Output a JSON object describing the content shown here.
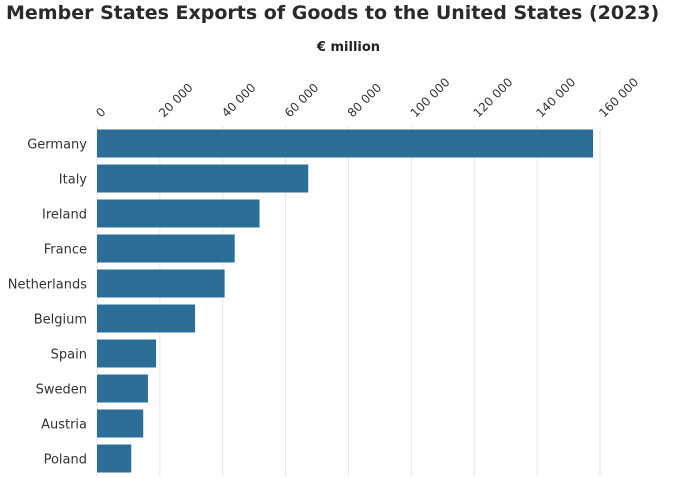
{
  "chart_data": {
    "type": "bar",
    "orientation": "horizontal",
    "title": "Member States Exports of Goods to the United States (2023)",
    "unit_label": "€ million",
    "categories": [
      "Germany",
      "Italy",
      "Ireland",
      "France",
      "Netherlands",
      "Belgium",
      "Spain",
      "Sweden",
      "Austria",
      "Poland"
    ],
    "values": [
      157800,
      67200,
      51700,
      43800,
      40600,
      31200,
      18800,
      16200,
      14700,
      10900
    ],
    "xlim": [
      0,
      160000
    ],
    "ticks": [
      0,
      20000,
      40000,
      60000,
      80000,
      100000,
      120000,
      140000,
      160000
    ],
    "tick_labels": [
      "0",
      "20 000",
      "40 000",
      "60 000",
      "80 000",
      "100 000",
      "120 000",
      "140 000",
      "160 000"
    ],
    "axis_position": "top",
    "grid": true,
    "bar_color": "#2b6f98"
  }
}
